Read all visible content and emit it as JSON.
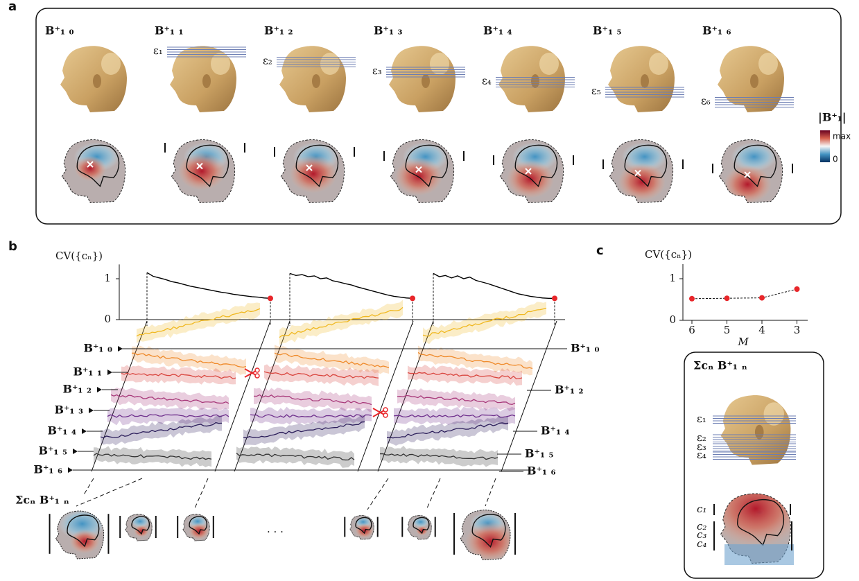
{
  "panel_labels": [
    "a",
    "b",
    "c"
  ],
  "panel_a": {
    "columns": [
      "B⁺₁ ₀",
      "B⁺₁ ₁",
      "B⁺₁ ₂",
      "B⁺₁ ₃",
      "B⁺₁ ₄",
      "B⁺₁ ₅",
      "B⁺₁ ₆"
    ],
    "epsilons": [
      "ε₁",
      "ε₂",
      "ε₃",
      "ε₄",
      "ε₅",
      "ε₆"
    ],
    "colorbar": {
      "title": "|B⁺₁|",
      "max_label": "max",
      "min_label": "0"
    }
  },
  "panel_b": {
    "rows_left": [
      "B⁺₁ ₀",
      "B⁺₁ ₁",
      "B⁺₁ ₂",
      "B⁺₁ ₃",
      "B⁺₁ ₄",
      "B⁺₁ ₅",
      "B⁺₁ ₆"
    ],
    "rows_right": [
      "B⁺₁ ₀",
      "B⁺₁ ₂",
      "B⁺₁ ₄",
      "B⁺₁ ₅",
      "B⁺₁ ₆"
    ],
    "sum_label": "Σcₙ B⁺₁ ₙ",
    "ellipsis": "· · ·"
  },
  "chart_data": [
    {
      "type": "line",
      "y_label": "CV({cₙ})",
      "ylim": [
        0,
        1.35
      ],
      "yticks": [
        0,
        1
      ],
      "marker_color": "#e8262a",
      "series": [
        {
          "color": "#000000",
          "values": [
            1.15,
            1.06,
            1.02,
            0.98,
            0.93,
            0.9,
            0.86,
            0.82,
            0.79,
            0.76,
            0.73,
            0.7,
            0.67,
            0.65,
            0.62,
            0.6,
            0.58,
            0.56,
            0.55,
            0.53,
            0.52
          ]
        },
        {
          "color": "#000000",
          "values": [
            1.13,
            1.08,
            1.1,
            1.05,
            1.07,
            1.0,
            1.02,
            0.95,
            0.92,
            0.88,
            0.85,
            0.8,
            0.76,
            0.72,
            0.68,
            0.64,
            0.6,
            0.57,
            0.55,
            0.53,
            0.52
          ]
        },
        {
          "color": "#000000",
          "values": [
            1.13,
            1.05,
            1.08,
            1.02,
            1.07,
            1.0,
            1.04,
            0.96,
            0.92,
            0.88,
            0.83,
            0.78,
            0.73,
            0.68,
            0.63,
            0.6,
            0.57,
            0.55,
            0.53,
            0.52,
            0.52
          ]
        }
      ]
    },
    {
      "type": "line",
      "title": "CV({cₙ})",
      "x_label": "M",
      "categories": [
        "6",
        "5",
        "4",
        "3"
      ],
      "values": [
        0.52,
        0.53,
        0.54,
        0.75
      ],
      "color": "#e8262a",
      "ylim": [
        0,
        1.35
      ],
      "yticks": [
        0,
        1
      ]
    }
  ],
  "panel_c_box": {
    "title": "Σcₙ B⁺₁ ₙ",
    "epsilons": [
      "ε₁",
      "ε₂",
      "ε₃",
      "ε₄"
    ],
    "coefficients": [
      "c₁",
      "c₂",
      "c₃",
      "c₄"
    ]
  }
}
